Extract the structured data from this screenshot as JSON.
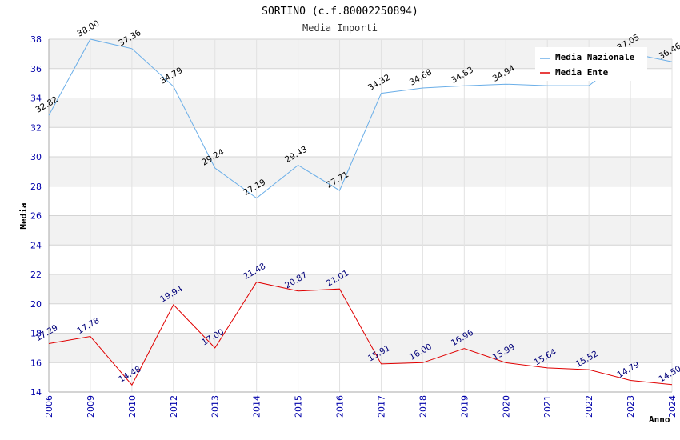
{
  "chart_data": {
    "type": "line",
    "title": "SORTINO (c.f.80002250894)",
    "subtitle": "Media Importi",
    "xlabel": "Anno",
    "ylabel": "Media",
    "ylim": [
      14,
      38
    ],
    "yticks": [
      "14",
      "16",
      "18",
      "20",
      "22",
      "24",
      "26",
      "28",
      "30",
      "32",
      "34",
      "36",
      "38"
    ],
    "categories": [
      "2006",
      "2009",
      "2010",
      "2012",
      "2013",
      "2014",
      "2015",
      "2016",
      "2017",
      "2018",
      "2019",
      "2020",
      "2021",
      "2022",
      "2023",
      "2024"
    ],
    "series": [
      {
        "name": "Media Nazionale",
        "color": "#6aaee8",
        "values": [
          32.82,
          38.0,
          37.36,
          34.79,
          29.24,
          27.19,
          29.43,
          27.71,
          34.32,
          34.68,
          34.83,
          34.94,
          34.84,
          34.84,
          37.05,
          36.46
        ],
        "labels": [
          "32.82",
          "38.00",
          "37.36",
          "34.79",
          "29.24",
          "27.19",
          "29.43",
          "27.71",
          "34.32",
          "34.68",
          "34.83",
          "34.94",
          "",
          "",
          "37.05",
          "36.46"
        ]
      },
      {
        "name": "Media Ente",
        "color": "#e00000",
        "values": [
          17.29,
          17.78,
          14.48,
          19.94,
          17.0,
          21.48,
          20.87,
          21.01,
          15.91,
          16.0,
          16.96,
          15.99,
          15.64,
          15.52,
          14.79,
          14.5
        ],
        "labels": [
          "17.29",
          "17.78",
          "14.48",
          "19.94",
          "17.00",
          "21.48",
          "20.87",
          "21.01",
          "15.91",
          "16.00",
          "16.96",
          "15.99",
          "15.64",
          "15.52",
          "14.79",
          "14.50"
        ]
      }
    ],
    "legend_position": "top-right",
    "grid": true
  }
}
